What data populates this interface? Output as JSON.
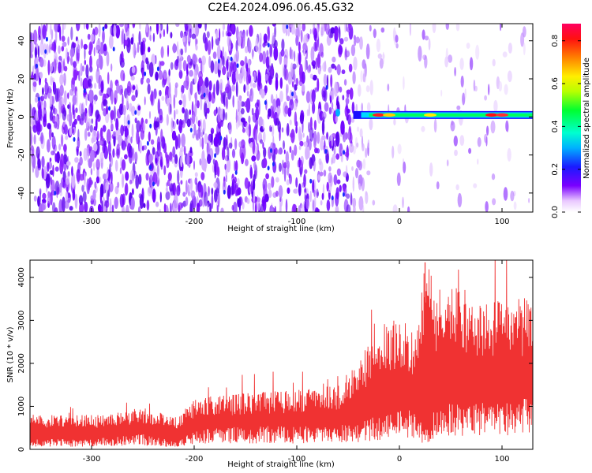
{
  "title": "C2E4.2024.096.06.45.G32",
  "chart_data": [
    {
      "type": "heatmap",
      "ylabel": "Frequency (Hz)",
      "xlabel": "Height of straight line (km)",
      "xlim": [
        -360,
        130
      ],
      "ylim": [
        -50,
        49
      ],
      "xticks": [
        -300,
        -200,
        -100,
        0,
        100
      ],
      "yticks": [
        -40,
        -20,
        0,
        20,
        40
      ],
      "grid": false,
      "colorbar": {
        "label": "Normalized spectral amplitude",
        "range": [
          0.0,
          0.88
        ],
        "ticks": [
          0.0,
          0.2,
          0.4,
          0.6,
          0.8
        ],
        "colormap": "hsv-like (white/violet low to red/magenta high)"
      },
      "features": {
        "broadband_noise_region_km": [
          -360,
          -45
        ],
        "tone_region_km": [
          -45,
          130
        ],
        "tone_frequency_hz": 1,
        "tone_peak_amplitude": 0.85
      }
    },
    {
      "type": "line",
      "ylabel": "SNR (10 * v/v)",
      "xlabel": "Height of straight line (km)",
      "xlim": [
        -360,
        130
      ],
      "ylim": [
        0,
        4400
      ],
      "xticks": [
        -300,
        -200,
        -100,
        0,
        100
      ],
      "yticks": [
        0,
        1000,
        2000,
        3000,
        4000
      ],
      "grid": false,
      "series_color": "#f03232",
      "envelope": [
        {
          "x": -360,
          "low": 200,
          "high": 700
        },
        {
          "x": -300,
          "low": 200,
          "high": 700
        },
        {
          "x": -250,
          "low": 300,
          "high": 850
        },
        {
          "x": -215,
          "low": 150,
          "high": 650
        },
        {
          "x": -200,
          "low": 400,
          "high": 1050
        },
        {
          "x": -150,
          "low": 450,
          "high": 1150
        },
        {
          "x": -100,
          "low": 450,
          "high": 1200
        },
        {
          "x": -60,
          "low": 500,
          "high": 1300
        },
        {
          "x": -40,
          "low": 550,
          "high": 1800
        },
        {
          "x": -20,
          "low": 650,
          "high": 2500
        },
        {
          "x": 0,
          "low": 900,
          "high": 2700
        },
        {
          "x": 15,
          "low": 700,
          "high": 2400
        },
        {
          "x": 25,
          "low": 400,
          "high": 4000
        },
        {
          "x": 35,
          "low": 800,
          "high": 3200
        },
        {
          "x": 50,
          "low": 900,
          "high": 3500
        },
        {
          "x": 70,
          "low": 900,
          "high": 3100
        },
        {
          "x": 100,
          "low": 1000,
          "high": 3000
        },
        {
          "x": 130,
          "low": 1000,
          "high": 3100
        }
      ],
      "peak": {
        "x": 25,
        "y": 4350
      }
    }
  ]
}
